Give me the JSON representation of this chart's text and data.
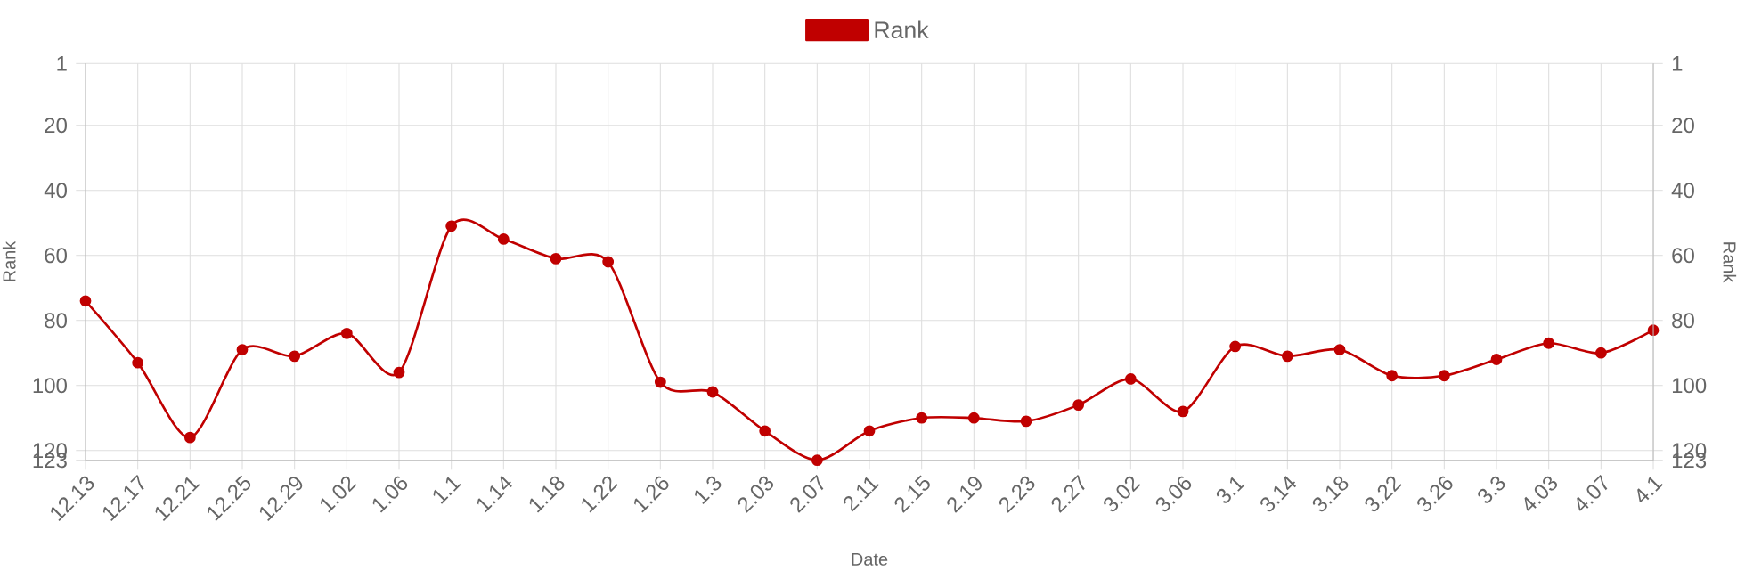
{
  "chart_data": {
    "type": "line",
    "categories": [
      "12.13",
      "12.17",
      "12.21",
      "12.25",
      "12.29",
      "1.02",
      "1.06",
      "1.1",
      "1.14",
      "1.18",
      "1.22",
      "1.26",
      "1.3",
      "2.03",
      "2.07",
      "2.11",
      "2.15",
      "2.19",
      "2.23",
      "2.27",
      "3.02",
      "3.06",
      "3.1",
      "3.14",
      "3.18",
      "3.22",
      "3.26",
      "3.3",
      "4.03",
      "4.07",
      "4.1"
    ],
    "series": [
      {
        "name": "Rank",
        "color": "#c00000",
        "values": [
          74,
          93,
          116,
          89,
          91,
          84,
          96,
          51,
          55,
          61,
          62,
          99,
          102,
          114,
          123,
          114,
          110,
          110,
          111,
          106,
          98,
          108,
          88,
          91,
          89,
          97,
          97,
          92,
          87,
          90,
          83
        ]
      }
    ],
    "xlabel": "Date",
    "ylabel": "Rank",
    "y2label": "Rank",
    "ylim": [
      123,
      1
    ],
    "yticks": [
      1,
      20,
      40,
      60,
      80,
      100,
      120,
      123
    ],
    "y2lim": [
      123,
      1
    ],
    "y2ticks": [
      1,
      20,
      40,
      60,
      80,
      100,
      120,
      123
    ],
    "grid": true,
    "legend": "top",
    "marker": "circle",
    "line_style": "solid"
  }
}
